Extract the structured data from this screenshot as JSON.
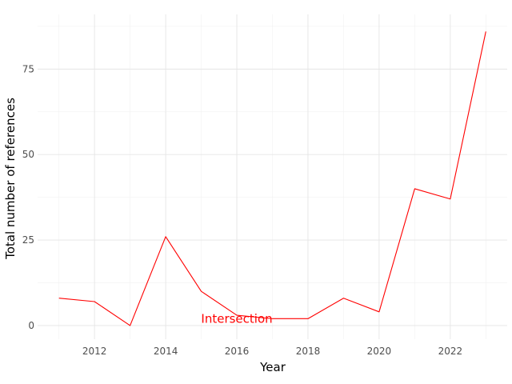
{
  "chart_data": {
    "type": "line",
    "title": "",
    "xlabel": "Year",
    "ylabel": "Total number of references",
    "x": [
      2011,
      2012,
      2013,
      2014,
      2015,
      2016,
      2017,
      2018,
      2019,
      2020,
      2021,
      2022,
      2023
    ],
    "series": [
      {
        "values": [
          8,
          7,
          0,
          26,
          10,
          3,
          2,
          2,
          8,
          4,
          40,
          37,
          86
        ],
        "color": "#ff0000"
      }
    ],
    "xlim": [
      2010.4,
      2023.6
    ],
    "ylim": [
      -4,
      91
    ],
    "xticks": [
      2012,
      2014,
      2016,
      2018,
      2020,
      2022
    ],
    "yticks": [
      0,
      25,
      50,
      75
    ],
    "grid": true,
    "legend": "none",
    "annotations": [
      {
        "text": "Intersection",
        "x": 2016,
        "y": 2,
        "color": "#ff0000"
      }
    ]
  }
}
